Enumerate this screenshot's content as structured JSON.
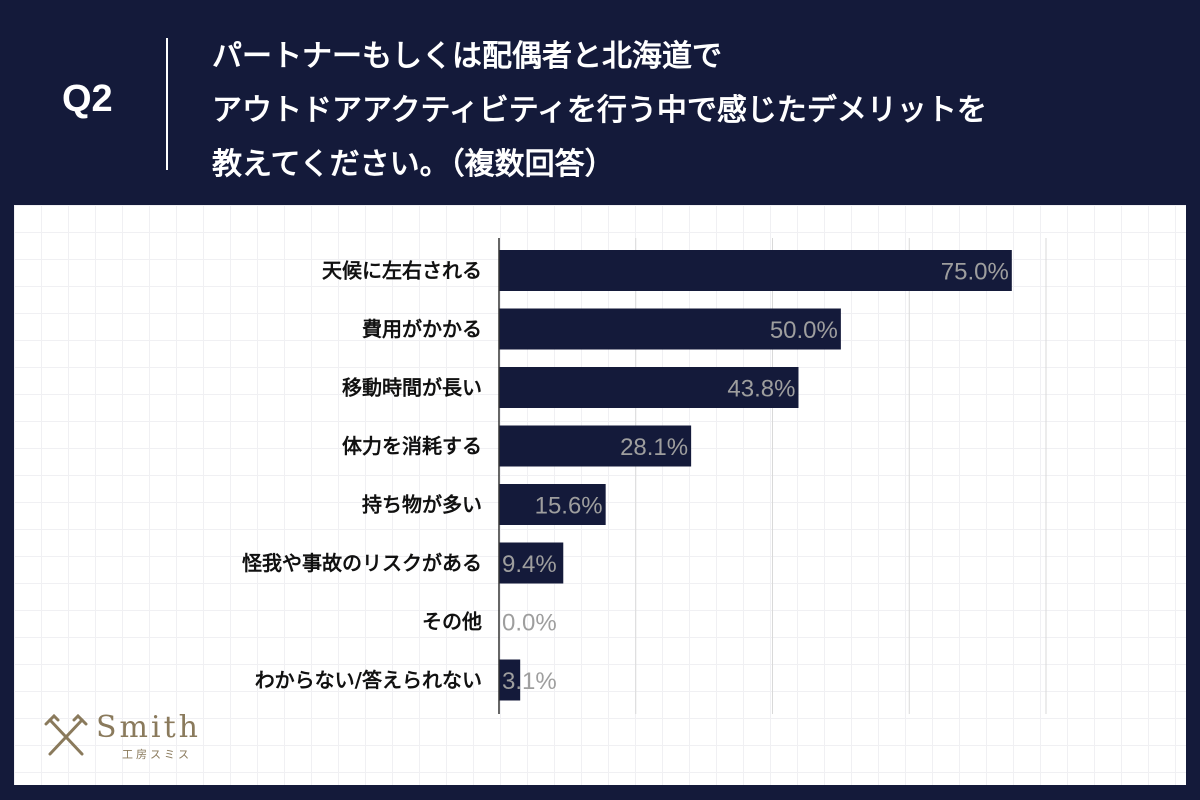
{
  "header": {
    "question_number": "Q2",
    "title_lines": [
      "パートナーもしくは配偶者と北海道で",
      "アウトドアアクティビティを行う中で感じたデメリットを",
      "教えてください。（複数回答）"
    ]
  },
  "chart_data": {
    "type": "bar",
    "orientation": "horizontal",
    "title": "パートナーもしくは配偶者と北海道でアウトドアアクティビティを行う中で感じたデメリットを教えてください。（複数回答）",
    "categories": [
      "天候に左右される",
      "費用がかかる",
      "移動時間が長い",
      "体力を消耗する",
      "持ち物が多い",
      "怪我や事故のリスクがある",
      "その他",
      "わからない/答えられない"
    ],
    "values": [
      75.0,
      50.0,
      43.8,
      28.1,
      15.6,
      9.4,
      0.0,
      3.1
    ],
    "value_labels": [
      "75.0%",
      "50.0%",
      "43.8%",
      "28.1%",
      "15.6%",
      "9.4%",
      "0.0%",
      "3.1%"
    ],
    "xlim": [
      0,
      80
    ],
    "gridlines_at": [
      20,
      40,
      60,
      80
    ],
    "unit": "%",
    "xlabel": "",
    "ylabel": ""
  },
  "logo": {
    "word": "Smith",
    "sub": "工房スミス"
  },
  "colors": {
    "navy": "#141a3a",
    "bar": "#141a3a",
    "value_label": "#9e9e9e",
    "grid": "#d9d9d9",
    "logo": "#8a7a5c"
  }
}
